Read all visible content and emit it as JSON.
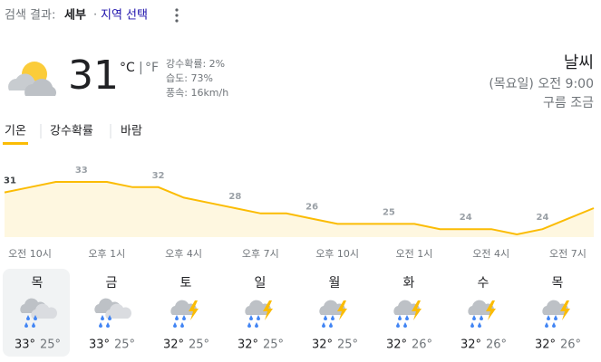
{
  "header": {
    "search_label": "검색 결과:",
    "location": "세부",
    "separator": "·",
    "region_link": "지역 선택"
  },
  "current": {
    "temp": "31",
    "unit_c": "°C",
    "unit_sep": "|",
    "unit_f": "°F",
    "precip": "강수확률: 2%",
    "humidity": "습도: 73%",
    "wind": "풍속: 16km/h"
  },
  "side": {
    "title": "날씨",
    "time": "(목요일) 오전 9:00",
    "condition": "구름 조금"
  },
  "tabs": [
    "기온",
    "강수확률",
    "바람"
  ],
  "chart_data": {
    "type": "area",
    "color": "#fbbc04",
    "fill": "#fef7e0",
    "categories": [
      "오전 10시",
      null,
      null,
      "오후 1시",
      null,
      null,
      "오후 4시",
      null,
      null,
      "오후 7시",
      null,
      null,
      "오후 10시",
      null,
      null,
      "오전 1시",
      null,
      null,
      "오전 4시",
      null,
      null,
      "오전 7시",
      null,
      null
    ],
    "values": [
      31,
      32,
      33,
      33,
      33,
      32,
      32,
      30,
      29,
      28,
      27,
      27,
      26,
      25,
      25,
      25,
      25,
      24,
      24,
      24,
      23,
      24,
      26,
      28
    ]
  },
  "daily": [
    {
      "day": "목",
      "high": "33°",
      "low": "25°",
      "icon": "rain"
    },
    {
      "day": "금",
      "high": "33°",
      "low": "25°",
      "icon": "rain"
    },
    {
      "day": "토",
      "high": "32°",
      "low": "25°",
      "icon": "storm"
    },
    {
      "day": "일",
      "high": "32°",
      "low": "25°",
      "icon": "storm"
    },
    {
      "day": "월",
      "high": "32°",
      "low": "25°",
      "icon": "storm"
    },
    {
      "day": "화",
      "high": "32°",
      "low": "26°",
      "icon": "storm"
    },
    {
      "day": "수",
      "high": "32°",
      "low": "26°",
      "icon": "storm"
    },
    {
      "day": "목",
      "high": "32°",
      "low": "26°",
      "icon": "storm"
    }
  ]
}
